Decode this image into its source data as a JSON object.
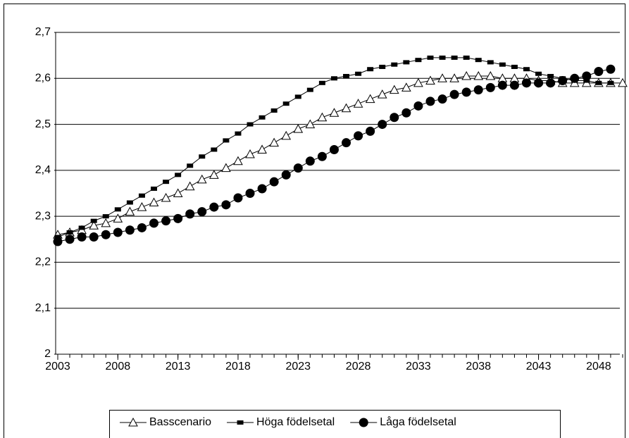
{
  "chart_data": {
    "type": "line",
    "x": [
      2003,
      2004,
      2005,
      2006,
      2007,
      2008,
      2009,
      2010,
      2011,
      2012,
      2013,
      2014,
      2015,
      2016,
      2017,
      2018,
      2019,
      2020,
      2021,
      2022,
      2023,
      2024,
      2025,
      2026,
      2027,
      2028,
      2029,
      2030,
      2031,
      2032,
      2033,
      2034,
      2035,
      2036,
      2037,
      2038,
      2039,
      2040,
      2041,
      2042,
      2043,
      2044,
      2045,
      2046,
      2047,
      2048,
      2049,
      2050
    ],
    "series": [
      {
        "name": "Basscenario",
        "color": "#000000",
        "marker": "triangle",
        "values": [
          2.26,
          2.265,
          2.27,
          2.28,
          2.285,
          2.295,
          2.31,
          2.32,
          2.33,
          2.34,
          2.35,
          2.365,
          2.38,
          2.39,
          2.405,
          2.42,
          2.435,
          2.445,
          2.46,
          2.475,
          2.49,
          2.5,
          2.515,
          2.525,
          2.535,
          2.545,
          2.555,
          2.565,
          2.575,
          2.58,
          2.59,
          2.595,
          2.6,
          2.6,
          2.605,
          2.605,
          2.605,
          2.6,
          2.6,
          2.6,
          2.595,
          2.595,
          2.59,
          2.59,
          2.59,
          2.59,
          2.59,
          2.59
        ]
      },
      {
        "name": "Höga födelsetal",
        "color": "#000000",
        "marker": "square",
        "values": [
          2.255,
          2.265,
          2.275,
          2.29,
          2.3,
          2.315,
          2.33,
          2.345,
          2.36,
          2.375,
          2.39,
          2.41,
          2.43,
          2.445,
          2.465,
          2.48,
          2.5,
          2.515,
          2.53,
          2.545,
          2.56,
          2.575,
          2.59,
          2.6,
          2.605,
          2.61,
          2.62,
          2.625,
          2.63,
          2.635,
          2.64,
          2.645,
          2.645,
          2.645,
          2.645,
          2.64,
          2.635,
          2.63,
          2.625,
          2.62,
          2.61,
          2.605,
          2.6,
          2.595,
          2.595,
          2.59,
          2.59,
          null
        ]
      },
      {
        "name": "Låga födelsetal",
        "color": "#000000",
        "marker": "circle",
        "values": [
          2.245,
          2.25,
          2.255,
          2.255,
          2.26,
          2.265,
          2.27,
          2.275,
          2.285,
          2.29,
          2.295,
          2.305,
          2.31,
          2.32,
          2.325,
          2.34,
          2.35,
          2.36,
          2.375,
          2.39,
          2.405,
          2.42,
          2.43,
          2.445,
          2.46,
          2.475,
          2.485,
          2.5,
          2.515,
          2.525,
          2.54,
          2.55,
          2.555,
          2.565,
          2.57,
          2.575,
          2.58,
          2.585,
          2.585,
          2.59,
          2.59,
          2.59,
          2.595,
          2.6,
          2.605,
          2.615,
          2.62,
          null
        ]
      }
    ],
    "xlim": [
      2003,
      2050
    ],
    "xticks": [
      2003,
      2008,
      2013,
      2018,
      2023,
      2028,
      2033,
      2038,
      2043,
      2048
    ],
    "ylim": [
      2,
      2.7
    ],
    "yticks": [
      2,
      {
        "value": 2.1,
        "label": "2,1"
      },
      {
        "value": 2.2,
        "label": "2,2"
      },
      {
        "value": 2.3,
        "label": "2,3"
      },
      {
        "value": 2.4,
        "label": "2,4"
      },
      {
        "value": 2.5,
        "label": "2,5"
      },
      {
        "value": 2.6,
        "label": "2,6"
      },
      {
        "value": 2.7,
        "label": "2,7"
      }
    ],
    "grid": true,
    "legend": "bottom"
  }
}
